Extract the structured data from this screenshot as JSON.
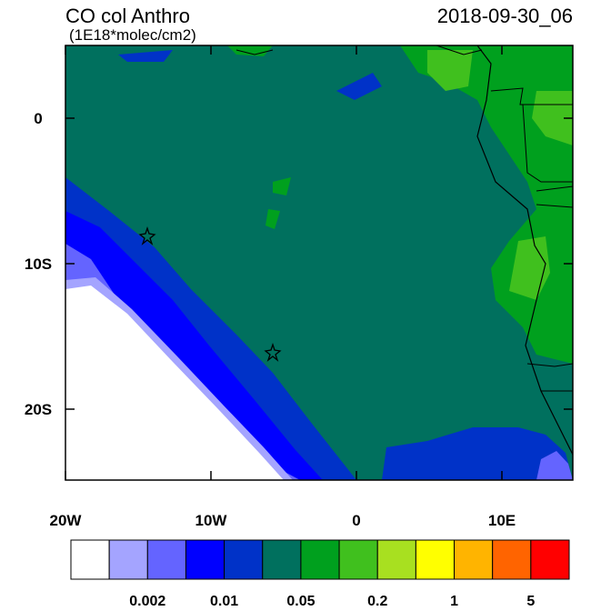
{
  "map": {
    "title": "CO col Anthro",
    "subtitle": "(1E18*molec/cm2)",
    "date": "2018-09-30_06",
    "xlim": [
      -20,
      14.875
    ],
    "ylim": [
      -24.875,
      5
    ],
    "xticks": [
      {
        "value": -20,
        "label": "20W"
      },
      {
        "value": -10,
        "label": "10W"
      },
      {
        "value": 0,
        "label": "0"
      },
      {
        "value": 10,
        "label": "10E"
      }
    ],
    "yticks": [
      {
        "value": 0,
        "label": "0"
      },
      {
        "value": -10,
        "label": "10S"
      },
      {
        "value": -20,
        "label": "20S"
      }
    ],
    "colorbar": {
      "colors": [
        "#ffffff",
        "#a4a4ff",
        "#6464ff",
        "#0000ff",
        "#0032c8",
        "#00705e",
        "#00a01e",
        "#40c01e",
        "#a8e020",
        "#ffff00",
        "#ffb400",
        "#ff6400",
        "#ff0000"
      ],
      "labels": [
        "0.002",
        "0.01",
        "0.05",
        "0.2",
        "1",
        "5"
      ]
    }
  }
}
